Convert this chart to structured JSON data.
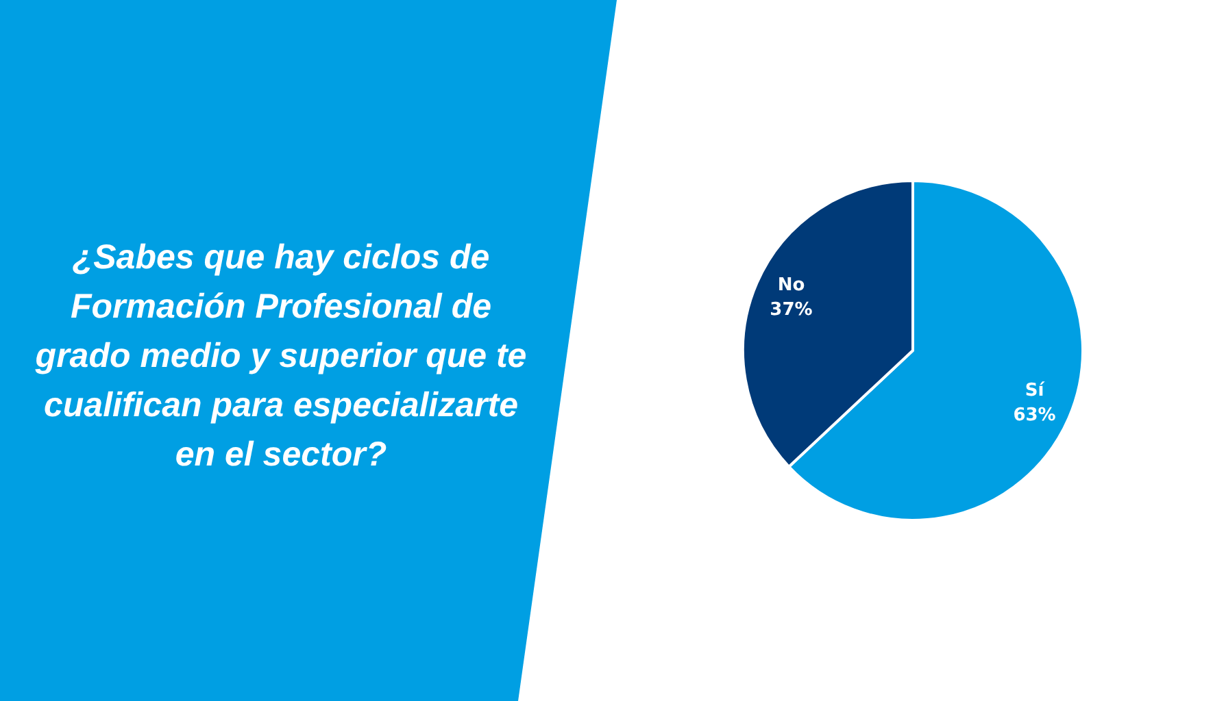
{
  "chart_data": {
    "type": "pie",
    "title": "¿Sabes que hay ciclos de Formación Profesional de grado medio y superior que te cualifican para especializarte en el sector?",
    "categories": [
      "Sí",
      "No"
    ],
    "values": [
      63,
      37
    ],
    "colors": [
      "#009fe3",
      "#003a78"
    ],
    "value_labels": [
      "63%",
      "37%"
    ]
  }
}
